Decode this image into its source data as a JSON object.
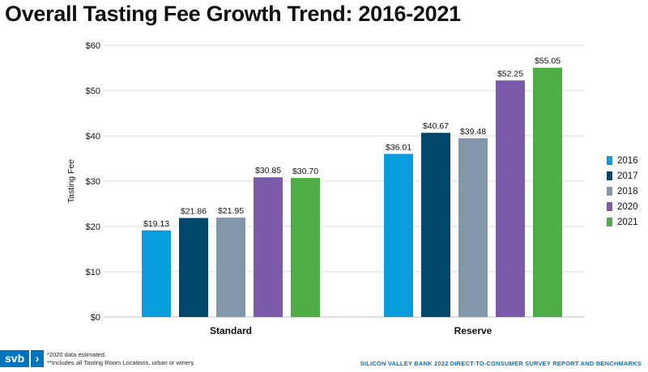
{
  "title": "Overall Tasting Fee Growth Trend: 2016-2021",
  "chart_data": {
    "type": "bar",
    "categories": [
      "Standard",
      "Reserve"
    ],
    "series": [
      {
        "name": "2016",
        "color": "#0a9ddd",
        "values": [
          19.13,
          36.01
        ],
        "labels": [
          "$19.13",
          "$36.01"
        ]
      },
      {
        "name": "2017",
        "color": "#00486b",
        "values": [
          21.86,
          40.67
        ],
        "labels": [
          "$21.86",
          "$40.67"
        ]
      },
      {
        "name": "2018",
        "color": "#8298aa",
        "values": [
          21.95,
          39.48
        ],
        "labels": [
          "$21.95",
          "$39.48"
        ]
      },
      {
        "name": "2020",
        "color": "#7b5aaa",
        "values": [
          30.85,
          52.25
        ],
        "labels": [
          "$30.85",
          "$52.25"
        ]
      },
      {
        "name": "2021",
        "color": "#4fad45",
        "values": [
          30.7,
          55.05
        ],
        "labels": [
          "$30.70",
          "$55.05"
        ]
      }
    ],
    "ylabel": "Tasting Fee",
    "xlabel": "",
    "ylim": [
      0,
      60
    ],
    "yticks": [
      0,
      10,
      20,
      30,
      40,
      50,
      60
    ],
    "ytick_labels": [
      "$0",
      "$10",
      "$20",
      "$30",
      "$40",
      "$50",
      "$60"
    ],
    "grid": true,
    "legend_position": "right"
  },
  "legend": {
    "items": [
      {
        "label": "2016",
        "color": "#0a9ddd"
      },
      {
        "label": "2017",
        "color": "#00486b"
      },
      {
        "label": "2018",
        "color": "#8298aa"
      },
      {
        "label": "2020",
        "color": "#7b5aaa"
      },
      {
        "label": "2021",
        "color": "#4fad45"
      }
    ]
  },
  "logo": {
    "text": "svb",
    "chevron": "›"
  },
  "footnotes": {
    "line1": "*2020 data estimated.",
    "line2": "**Includes all Tasting Room Locations, urban or winery."
  },
  "source": "SILICON VALLEY BANK 2022 DIRECT-TO-CONSUMER SURVEY REPORT AND BENCHMARKS"
}
